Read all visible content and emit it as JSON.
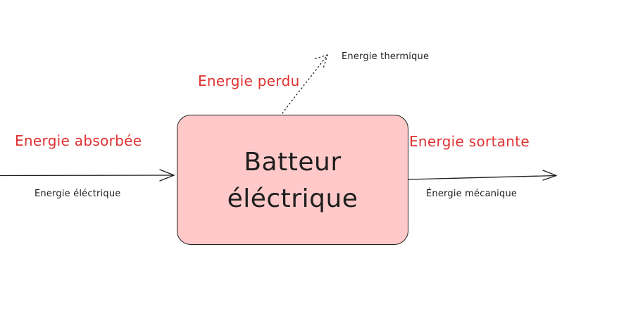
{
  "diagram": {
    "node": {
      "title_line1": "Batteur",
      "title_line2": "éléctrique",
      "fill": "#ffc9c9",
      "stroke": "#1e1e1e"
    },
    "input": {
      "heading": "Energie absorbée",
      "sublabel": "Energie éléctrique"
    },
    "output": {
      "heading": "Energie sortante",
      "sublabel": "Énergie mécanique"
    },
    "loss": {
      "heading": "Energie perdu",
      "sublabel": "Energie thermique"
    },
    "colors": {
      "accent_red": "#e03131",
      "ink": "#1e1e1e"
    }
  }
}
